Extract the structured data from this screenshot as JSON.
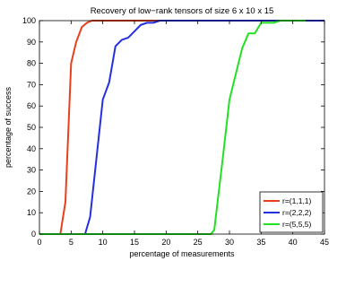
{
  "chart_data": {
    "type": "line",
    "title": "Recovery of low−rank tensors of size 6 x 10 x 15",
    "xlabel": "percentage of measurements",
    "ylabel": "percentage of success",
    "xlim": [
      0,
      45
    ],
    "ylim": [
      0,
      100
    ],
    "xticks": [
      0,
      5,
      10,
      15,
      20,
      25,
      30,
      35,
      40,
      45
    ],
    "yticks": [
      0,
      10,
      20,
      30,
      40,
      50,
      60,
      70,
      80,
      90,
      100
    ],
    "grid": false,
    "legend_position": "bottom-right",
    "series": [
      {
        "name": "r=(1,1,1)",
        "color": "#e8401c",
        "x": [
          0,
          3.3,
          4.1,
          5.0,
          5.8,
          6.7,
          7.5,
          8.3,
          9.2,
          10,
          11,
          12,
          13,
          45
        ],
        "y": [
          0,
          0,
          15,
          80,
          90,
          97,
          99,
          100,
          100,
          100,
          100,
          100,
          100,
          100
        ]
      },
      {
        "name": "r=(2,2,2)",
        "color": "#2430e0",
        "x": [
          0,
          7.2,
          8.0,
          10.0,
          11.0,
          12.0,
          13.0,
          14.0,
          15.0,
          16.0,
          17.0,
          18.0,
          19.0,
          20.0,
          45
        ],
        "y": [
          0,
          0,
          8,
          63,
          71,
          88,
          91,
          92,
          95,
          98,
          99,
          99,
          100,
          100,
          100
        ]
      },
      {
        "name": "r=(5,5,5)",
        "color": "#22e022",
        "x": [
          0,
          27.1,
          27.6,
          29.0,
          30.0,
          31.0,
          32.0,
          33.0,
          34.0,
          35.0,
          36.0,
          37.0,
          38.0,
          42.0
        ],
        "y": [
          0,
          0,
          2,
          37,
          63,
          75,
          87,
          94,
          94,
          99,
          99,
          99,
          100,
          100
        ]
      }
    ]
  }
}
